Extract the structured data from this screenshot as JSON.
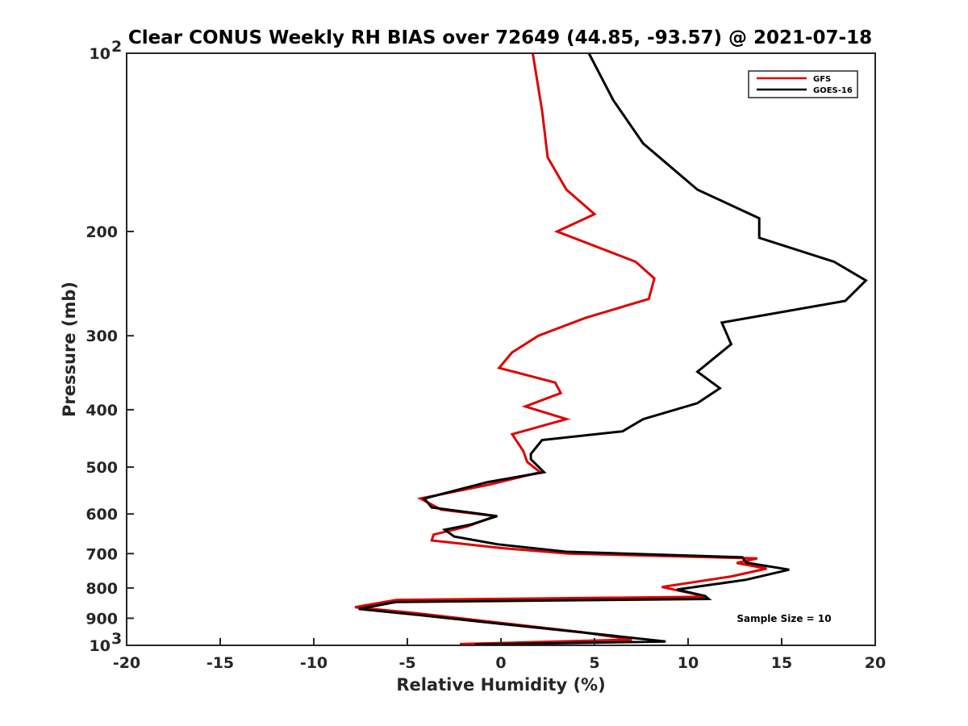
{
  "chart_data": {
    "type": "line",
    "title": "Clear CONUS Weekly RH BIAS over 72649 (44.85, -93.57) @ 2021-07-18",
    "xlabel": "Relative Humidity (%)",
    "ylabel": "Pressure (mb)",
    "xlim": [
      -20,
      20
    ],
    "ylim": [
      100,
      1000
    ],
    "y_scale": "log",
    "y_reversed": true,
    "grid": false,
    "legend_position": "top-right",
    "x_tick_labels": [
      "-20",
      "-15",
      "-10",
      "-5",
      "0",
      "5",
      "10",
      "15",
      "20"
    ],
    "y_tick_labels": [
      {
        "base": "10",
        "exp": "2"
      },
      {
        "base": "200",
        "exp": ""
      },
      {
        "base": "300",
        "exp": ""
      },
      {
        "base": "400",
        "exp": ""
      },
      {
        "base": "500",
        "exp": ""
      },
      {
        "base": "600",
        "exp": ""
      },
      {
        "base": "700",
        "exp": ""
      },
      {
        "base": "800",
        "exp": ""
      },
      {
        "base": "900",
        "exp": ""
      },
      {
        "base": "10",
        "exp": "3"
      }
    ],
    "annotation": "Sample Size = 10",
    "series": [
      {
        "name": "GFS",
        "color": "#e00000",
        "points": [
          [
            1.7,
            100
          ],
          [
            2.2,
            125
          ],
          [
            2.5,
            150
          ],
          [
            3.5,
            170
          ],
          [
            5.0,
            187
          ],
          [
            3.0,
            200
          ],
          [
            7.2,
            225
          ],
          [
            8.2,
            240
          ],
          [
            7.9,
            260
          ],
          [
            4.5,
            280
          ],
          [
            2.0,
            300
          ],
          [
            0.6,
            320
          ],
          [
            -0.1,
            340
          ],
          [
            2.9,
            360
          ],
          [
            3.2,
            375
          ],
          [
            1.3,
            395
          ],
          [
            3.5,
            415
          ],
          [
            0.6,
            440
          ],
          [
            1.2,
            470
          ],
          [
            1.4,
            490
          ],
          [
            2.1,
            510
          ],
          [
            -0.6,
            535
          ],
          [
            -4.3,
            565
          ],
          [
            -3.2,
            590
          ],
          [
            -0.3,
            605
          ],
          [
            -1.8,
            630
          ],
          [
            -3.6,
            650
          ],
          [
            -3.7,
            665
          ],
          [
            0.0,
            685
          ],
          [
            3.6,
            700
          ],
          [
            13.7,
            713
          ],
          [
            12.6,
            726
          ],
          [
            14.2,
            742
          ],
          [
            12.3,
            765
          ],
          [
            8.6,
            797
          ],
          [
            10.4,
            820
          ],
          [
            10.9,
            828
          ],
          [
            -5.6,
            838
          ],
          [
            -7.8,
            862
          ],
          [
            -4.6,
            882
          ],
          [
            -0.2,
            915
          ],
          [
            4.3,
            950
          ],
          [
            7.0,
            978
          ],
          [
            -2.2,
            995
          ]
        ]
      },
      {
        "name": "GOES-16",
        "color": "#000000",
        "points": [
          [
            4.7,
            100
          ],
          [
            6.0,
            120
          ],
          [
            7.6,
            142
          ],
          [
            10.5,
            170
          ],
          [
            13.8,
            190
          ],
          [
            13.8,
            205
          ],
          [
            17.8,
            225
          ],
          [
            19.5,
            242
          ],
          [
            18.4,
            262
          ],
          [
            11.8,
            285
          ],
          [
            12.3,
            310
          ],
          [
            10.5,
            345
          ],
          [
            11.7,
            368
          ],
          [
            10.5,
            390
          ],
          [
            7.6,
            415
          ],
          [
            6.5,
            435
          ],
          [
            2.2,
            450
          ],
          [
            1.6,
            475
          ],
          [
            1.6,
            485
          ],
          [
            2.3,
            510
          ],
          [
            -0.7,
            530
          ],
          [
            -4.1,
            565
          ],
          [
            -3.7,
            585
          ],
          [
            -0.2,
            605
          ],
          [
            -1.6,
            625
          ],
          [
            -3.0,
            638
          ],
          [
            -2.5,
            655
          ],
          [
            -0.2,
            675
          ],
          [
            3.5,
            695
          ],
          [
            12.9,
            710
          ],
          [
            13.1,
            725
          ],
          [
            15.4,
            745
          ],
          [
            13.1,
            775
          ],
          [
            9.4,
            805
          ],
          [
            10.9,
            825
          ],
          [
            11.1,
            835
          ],
          [
            -5.6,
            845
          ],
          [
            -7.6,
            868
          ],
          [
            -4.5,
            888
          ],
          [
            0.0,
            920
          ],
          [
            4.2,
            950
          ],
          [
            8.8,
            985
          ],
          [
            -1.4,
            997
          ]
        ]
      }
    ]
  }
}
